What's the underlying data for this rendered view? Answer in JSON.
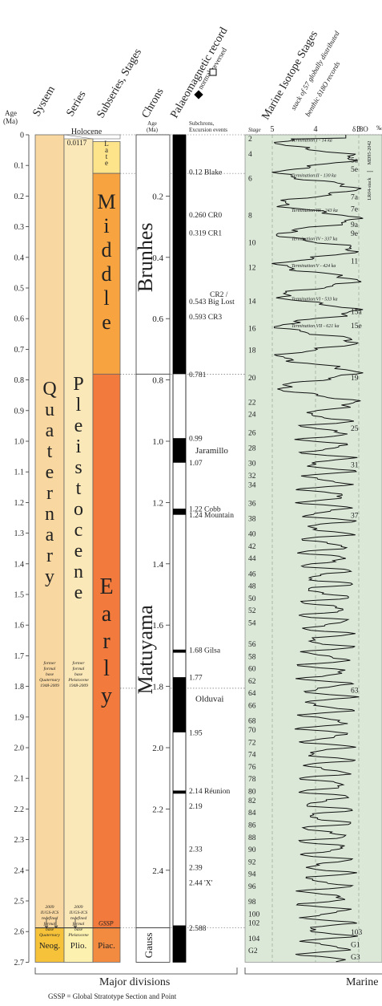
{
  "colors": {
    "quaternary": "#f9d7a0",
    "pleistocene": "#fbe8b8",
    "late": "#fde38a",
    "middle": "#f7a440",
    "early": "#f27a3c",
    "neogene": "#f5c23a",
    "pliocene": "#fdf1b0",
    "piacenzian": "#f28a40",
    "mis_panel": "#dbe8d8",
    "normal": "#000000",
    "reversed": "#ffffff"
  },
  "headers": {
    "age": "Age\n(Ma)",
    "system": "System",
    "series": "Series",
    "subseries": "Subseries, Stages",
    "chrons": "Chrons",
    "palaeomag": "Palaeomagnetic record",
    "normal": "normal",
    "reversed": "reversed",
    "mis": "Marine Isotope Stages",
    "mis_sub": "stack of 57 globally distributed",
    "mis_sub2": "benthic δ18O records",
    "age_col2": "Age\n(Ma)",
    "subchrons": "Subchrons,\nExcursion events",
    "stage_col": "Stage",
    "d18o_label": "δ18O",
    "d18o_unit": "‰",
    "d18o_ticks": [
      "5",
      "4",
      "3"
    ]
  },
  "axis_ticks": [
    "0",
    "0.1",
    "0.2",
    "0.3",
    "0.4",
    "0.5",
    "0.6",
    "0.7",
    "0.8",
    "0.9",
    "1.0",
    "1.1",
    "1.2",
    "1.3",
    "1.4",
    "1.5",
    "1.6",
    "1.7",
    "1.8",
    "1.9",
    "2.0",
    "2.1",
    "2.2",
    "2.3",
    "2.4",
    "2.5",
    "2.6",
    "2.7"
  ],
  "chron_ticks": [
    "0.2",
    "0.4",
    "0.6",
    "0.8",
    "1.0",
    "1.2",
    "1.4",
    "1.6",
    "1.8",
    "2.0",
    "2.2",
    "2.4"
  ],
  "units": {
    "holocene": "Holocene",
    "holocene_age": "0.0117",
    "system": [
      "Q",
      "u",
      "a",
      "t",
      "e",
      "r",
      "n",
      "a",
      "r",
      "y"
    ],
    "series": [
      "P",
      "l",
      "e",
      "i",
      "s",
      "t",
      "o",
      "c",
      "e",
      "n",
      "e"
    ],
    "late": [
      "L",
      "a",
      "t",
      "e"
    ],
    "middle": [
      "M",
      "i",
      "d",
      "d",
      "l",
      "e"
    ],
    "early": [
      "E",
      "a",
      "r",
      "l",
      "y"
    ],
    "neogene": "Neog.",
    "pliocene": "Plio.",
    "piacenzian": "Piac.",
    "brunhes": "Brunhes",
    "matuyama": "Matuyama",
    "gauss": "Gauss",
    "gssp": "GSSP",
    "former_q": "former formal base Quaternary 1948-2009",
    "former_p": "former formal base Pleistocene 1948-2009",
    "redef_q": "2009 IUGS-ICS redefined formal base Quaternary",
    "redef_p": "2009 IUGS-ICS redefined formal base Pleistocene"
  },
  "magnetic_events": [
    {
      "age": 0.12,
      "label": "0.12 Blake"
    },
    {
      "age": 0.26,
      "label": "0.260 CR0"
    },
    {
      "age": 0.319,
      "label": "0.319 CR1"
    },
    {
      "age": 0.52,
      "label": "CR2 /"
    },
    {
      "age": 0.543,
      "label": "0.543 Big Lost"
    },
    {
      "age": 0.593,
      "label": "0.593 CR3"
    },
    {
      "age": 0.781,
      "label": "0.781"
    },
    {
      "age": 0.99,
      "label": "0.99"
    },
    {
      "age": 1.03,
      "label": "Jaramillo"
    },
    {
      "age": 1.07,
      "label": "1.07"
    },
    {
      "age": 1.22,
      "label": "1.22 Cobb"
    },
    {
      "age": 1.24,
      "label": "1.24 Mountain"
    },
    {
      "age": 1.68,
      "label": "1.68 Gilsa"
    },
    {
      "age": 1.77,
      "label": "1.77"
    },
    {
      "age": 1.84,
      "label": "Olduvai"
    },
    {
      "age": 1.95,
      "label": "1.95"
    },
    {
      "age": 2.14,
      "label": "2.14 Réunion"
    },
    {
      "age": 2.19,
      "label": "2.19"
    },
    {
      "age": 2.33,
      "label": "2.33"
    },
    {
      "age": 2.39,
      "label": "2.39"
    },
    {
      "age": 2.44,
      "label": "2.44 'X'"
    },
    {
      "age": 2.588,
      "label": "2.588"
    }
  ],
  "normal_intervals": [
    [
      0,
      0.781
    ],
    [
      0.99,
      1.07
    ],
    [
      1.22,
      1.24
    ],
    [
      1.68,
      1.69
    ],
    [
      1.77,
      1.95
    ],
    [
      2.14,
      2.15
    ],
    [
      2.58,
      2.7
    ]
  ],
  "mis_left": [
    {
      "age": 0.01,
      "n": "2"
    },
    {
      "age": 0.06,
      "n": "4"
    },
    {
      "age": 0.14,
      "n": "6"
    },
    {
      "age": 0.26,
      "n": "8"
    },
    {
      "age": 0.35,
      "n": "10"
    },
    {
      "age": 0.43,
      "n": "12"
    },
    {
      "age": 0.54,
      "n": "14"
    },
    {
      "age": 0.63,
      "n": "16"
    },
    {
      "age": 0.7,
      "n": "18"
    },
    {
      "age": 0.79,
      "n": "20"
    },
    {
      "age": 0.87,
      "n": "22"
    },
    {
      "age": 0.91,
      "n": "24"
    },
    {
      "age": 0.97,
      "n": "26"
    },
    {
      "age": 1.02,
      "n": "28"
    },
    {
      "age": 1.07,
      "n": "30"
    },
    {
      "age": 1.11,
      "n": "32"
    },
    {
      "age": 1.14,
      "n": "34"
    },
    {
      "age": 1.2,
      "n": "36"
    },
    {
      "age": 1.25,
      "n": "38"
    },
    {
      "age": 1.3,
      "n": "40"
    },
    {
      "age": 1.34,
      "n": "42"
    },
    {
      "age": 1.38,
      "n": "44"
    },
    {
      "age": 1.43,
      "n": "46"
    },
    {
      "age": 1.47,
      "n": "48"
    },
    {
      "age": 1.51,
      "n": "50"
    },
    {
      "age": 1.55,
      "n": "52"
    },
    {
      "age": 1.59,
      "n": "54"
    },
    {
      "age": 1.66,
      "n": "56"
    },
    {
      "age": 1.7,
      "n": "58"
    },
    {
      "age": 1.74,
      "n": "60"
    },
    {
      "age": 1.78,
      "n": "62"
    },
    {
      "age": 1.82,
      "n": "64"
    },
    {
      "age": 1.86,
      "n": "66"
    },
    {
      "age": 1.91,
      "n": "68"
    },
    {
      "age": 1.94,
      "n": "70"
    },
    {
      "age": 1.98,
      "n": "72"
    },
    {
      "age": 2.02,
      "n": "74"
    },
    {
      "age": 2.06,
      "n": "76"
    },
    {
      "age": 2.1,
      "n": "78"
    },
    {
      "age": 2.14,
      "n": "80"
    },
    {
      "age": 2.17,
      "n": "82"
    },
    {
      "age": 2.21,
      "n": "84"
    },
    {
      "age": 2.25,
      "n": "86"
    },
    {
      "age": 2.29,
      "n": "88"
    },
    {
      "age": 2.33,
      "n": "90"
    },
    {
      "age": 2.37,
      "n": "92"
    },
    {
      "age": 2.41,
      "n": "94"
    },
    {
      "age": 2.45,
      "n": "96"
    },
    {
      "age": 2.5,
      "n": "98"
    },
    {
      "age": 2.54,
      "n": "100"
    },
    {
      "age": 2.57,
      "n": "102"
    },
    {
      "age": 2.62,
      "n": "104"
    },
    {
      "age": 2.66,
      "n": "G2"
    }
  ],
  "mis_right": [
    {
      "age": 0.08,
      "n": "5a"
    },
    {
      "age": 0.11,
      "n": "5e"
    },
    {
      "age": 0.2,
      "n": "7a"
    },
    {
      "age": 0.24,
      "n": "7e"
    },
    {
      "age": 0.29,
      "n": "9a"
    },
    {
      "age": 0.32,
      "n": "9e"
    },
    {
      "age": 0.41,
      "n": "11"
    },
    {
      "age": 0.575,
      "n": "15a"
    },
    {
      "age": 0.62,
      "n": "15e"
    },
    {
      "age": 0.79,
      "n": "19"
    },
    {
      "age": 0.955,
      "n": "25"
    },
    {
      "age": 1.075,
      "n": "31"
    },
    {
      "age": 1.24,
      "n": "37"
    },
    {
      "age": 1.81,
      "n": "63"
    },
    {
      "age": 2.6,
      "n": "103"
    },
    {
      "age": 2.64,
      "n": "G1"
    },
    {
      "age": 2.68,
      "n": "G3"
    }
  ],
  "terminations": [
    {
      "age": 0.014,
      "label": "Termination I - 14 ka"
    },
    {
      "age": 0.13,
      "label": "Termination II - 130 ka"
    },
    {
      "age": 0.243,
      "label": "Termination III - 243 ka"
    },
    {
      "age": 0.337,
      "label": "Termination IV - 337 ka"
    },
    {
      "age": 0.424,
      "label": "Termination V - 424 ka"
    },
    {
      "age": 0.533,
      "label": "Termination VI - 533 ka"
    },
    {
      "age": 0.621,
      "label": "Termination VII - 621 ka"
    }
  ],
  "side_labels": [
    "MD95-2042",
    "LR04-stack"
  ],
  "footer": {
    "major_divisions": "Major divisions",
    "gssp_note": "GSSP = Global Stratotype Section and Point",
    "marine": "Marine"
  }
}
